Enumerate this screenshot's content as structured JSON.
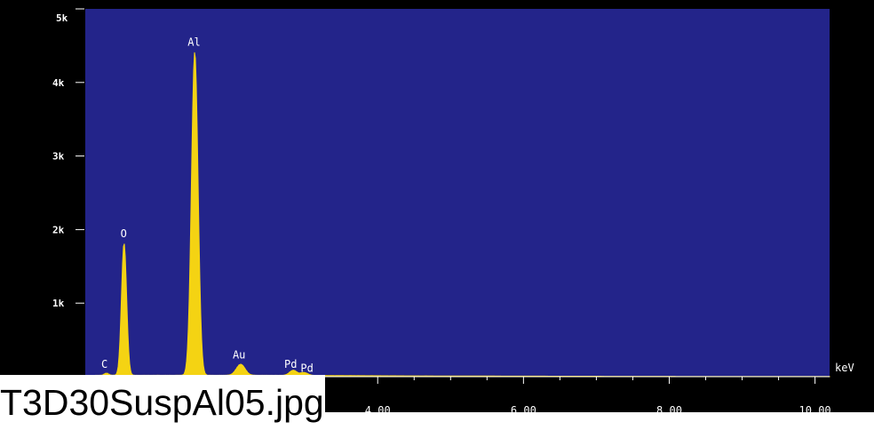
{
  "colors": {
    "plot_background": "#23248a",
    "frame": "#000000",
    "trace": "#f4d313",
    "text": "#ffffff",
    "caption_background": "#ffffff",
    "caption_text": "#000000"
  },
  "caption": {
    "filename": "T3D30SuspAl05.jpg"
  },
  "chart_data": {
    "type": "area",
    "xlabel": "keV",
    "ylabel": "",
    "xlim": [
      0,
      10.2
    ],
    "ylim": [
      0,
      5000
    ],
    "y_ticks": [
      {
        "value": 1000,
        "label": "1k"
      },
      {
        "value": 2000,
        "label": "2k"
      },
      {
        "value": 3000,
        "label": "3k"
      },
      {
        "value": 4000,
        "label": "4k"
      },
      {
        "value": 5000,
        "label": "5k"
      }
    ],
    "x_ticks": [
      {
        "value": 4,
        "label": "4.00"
      },
      {
        "value": 6,
        "label": "6.00"
      },
      {
        "value": 8,
        "label": "8.00"
      },
      {
        "value": 10,
        "label": "10.00"
      }
    ],
    "peaks": [
      {
        "label": "C",
        "energy": 0.28,
        "counts": 30,
        "width": 0.03
      },
      {
        "label": "O",
        "energy": 0.52,
        "counts": 1800,
        "width": 0.035
      },
      {
        "label": "Al",
        "energy": 1.49,
        "counts": 4400,
        "width": 0.045
      },
      {
        "label": "Au",
        "energy": 2.12,
        "counts": 150,
        "width": 0.06
      },
      {
        "label": "Pd",
        "energy": 2.84,
        "counts": 70,
        "width": 0.05
      },
      {
        "label": "Pd",
        "energy": 2.99,
        "counts": 40,
        "width": 0.05
      }
    ],
    "background_counts": 15
  }
}
